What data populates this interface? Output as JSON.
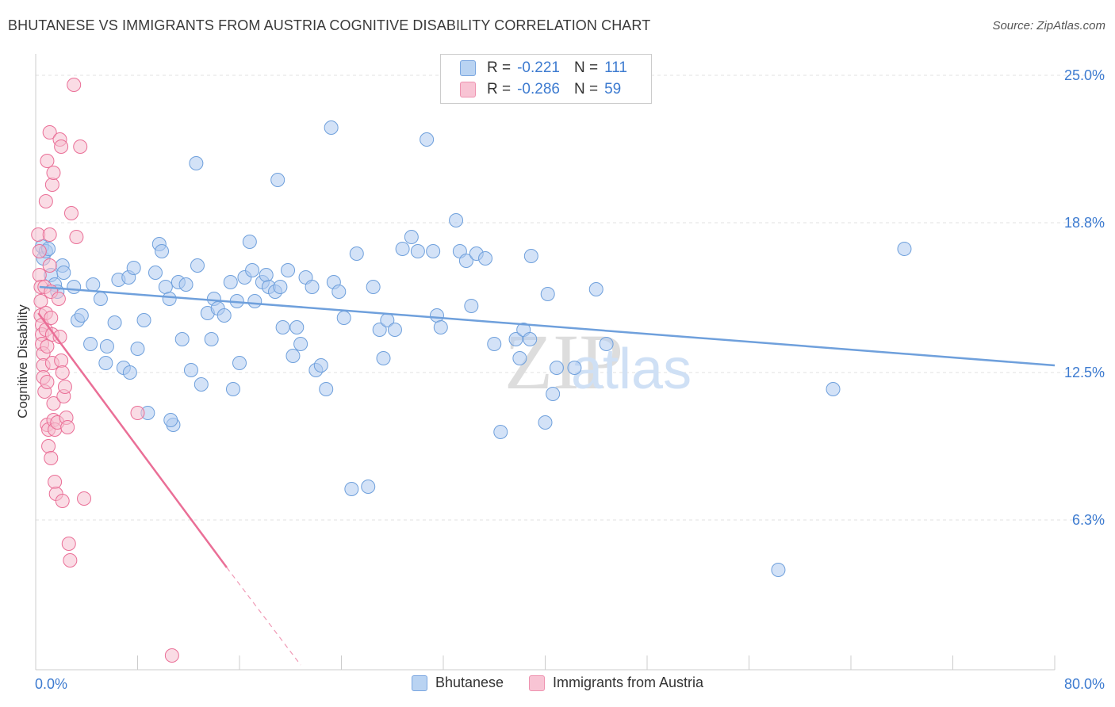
{
  "title": "BHUTANESE VS IMMIGRANTS FROM AUSTRIA COGNITIVE DISABILITY CORRELATION CHART",
  "source": "Source: ZipAtlas.com",
  "watermark": {
    "zip": "ZIP",
    "atlas": "atlas"
  },
  "legend": {
    "r_label": "R =",
    "n_label": "N =",
    "rows": [
      {
        "name": "Bhutanese",
        "r": "-0.221",
        "n": "111",
        "fill": "#b9d3f2",
        "stroke": "#7aa6e0"
      },
      {
        "name": "Immigrants from Austria",
        "r": "-0.286",
        "n": "59",
        "fill": "#f8c4d4",
        "stroke": "#ee93b0"
      }
    ]
  },
  "chart_data": {
    "type": "scatter",
    "title": "BHUTANESE VS IMMIGRANTS FROM AUSTRIA COGNITIVE DISABILITY CORRELATION CHART",
    "xlabel": "",
    "ylabel": "Cognitive Disability",
    "xlim": [
      0,
      80
    ],
    "ylim": [
      0,
      25.5
    ],
    "x_tick_labels": [
      "0.0%",
      "80.0%"
    ],
    "y_ticks": [
      6.3,
      12.5,
      18.8,
      25.0
    ],
    "y_tick_labels": [
      "6.3%",
      "12.5%",
      "18.8%",
      "25.0%"
    ],
    "grid": true,
    "series": [
      {
        "name": "Bhutanese",
        "color": "#6fa0dc",
        "fill": "#aecbf0",
        "trend": {
          "x0": 0.3,
          "y0": 16.1,
          "x1": 80,
          "y1": 12.8
        },
        "points": [
          [
            0.5,
            17.8
          ],
          [
            0.6,
            17.3
          ],
          [
            0.8,
            17.6
          ],
          [
            1.0,
            17.7
          ],
          [
            1.2,
            16.6
          ],
          [
            1.5,
            16.2
          ],
          [
            1.7,
            15.9
          ],
          [
            2.1,
            17.0
          ],
          [
            2.2,
            16.7
          ],
          [
            3.0,
            16.1
          ],
          [
            3.3,
            14.7
          ],
          [
            3.6,
            14.9
          ],
          [
            4.3,
            13.7
          ],
          [
            4.5,
            16.2
          ],
          [
            5.1,
            15.6
          ],
          [
            5.5,
            12.9
          ],
          [
            5.6,
            13.6
          ],
          [
            6.2,
            14.6
          ],
          [
            6.5,
            16.4
          ],
          [
            6.9,
            12.7
          ],
          [
            7.3,
            16.5
          ],
          [
            7.4,
            12.5
          ],
          [
            7.7,
            16.9
          ],
          [
            8.0,
            13.5
          ],
          [
            8.5,
            14.7
          ],
          [
            8.8,
            10.8
          ],
          [
            9.4,
            16.7
          ],
          [
            9.7,
            17.9
          ],
          [
            9.9,
            17.6
          ],
          [
            10.2,
            16.1
          ],
          [
            10.5,
            15.6
          ],
          [
            10.8,
            10.3
          ],
          [
            11.2,
            16.3
          ],
          [
            11.5,
            13.9
          ],
          [
            11.8,
            16.2
          ],
          [
            12.2,
            12.6
          ],
          [
            12.6,
            21.3
          ],
          [
            12.7,
            17.0
          ],
          [
            13.0,
            12.0
          ],
          [
            13.5,
            15.0
          ],
          [
            13.8,
            13.9
          ],
          [
            14.0,
            15.6
          ],
          [
            14.3,
            15.2
          ],
          [
            14.8,
            14.9
          ],
          [
            15.3,
            16.3
          ],
          [
            15.5,
            11.8
          ],
          [
            15.8,
            15.5
          ],
          [
            16.0,
            12.9
          ],
          [
            16.4,
            16.5
          ],
          [
            16.8,
            18.0
          ],
          [
            17.0,
            16.8
          ],
          [
            17.2,
            15.5
          ],
          [
            17.8,
            16.3
          ],
          [
            18.1,
            16.6
          ],
          [
            18.3,
            16.1
          ],
          [
            18.8,
            15.9
          ],
          [
            19.0,
            20.6
          ],
          [
            19.2,
            16.1
          ],
          [
            19.4,
            14.4
          ],
          [
            19.8,
            16.8
          ],
          [
            20.2,
            13.2
          ],
          [
            20.5,
            14.4
          ],
          [
            20.8,
            13.7
          ],
          [
            21.2,
            16.5
          ],
          [
            21.7,
            16.1
          ],
          [
            22.0,
            12.6
          ],
          [
            22.4,
            12.8
          ],
          [
            22.8,
            11.8
          ],
          [
            23.2,
            22.8
          ],
          [
            23.4,
            16.3
          ],
          [
            23.8,
            15.9
          ],
          [
            24.2,
            14.8
          ],
          [
            25.2,
            17.5
          ],
          [
            26.5,
            16.1
          ],
          [
            27.0,
            14.3
          ],
          [
            27.3,
            13.1
          ],
          [
            27.6,
            14.7
          ],
          [
            28.2,
            14.3
          ],
          [
            28.8,
            17.7
          ],
          [
            29.5,
            18.2
          ],
          [
            30.0,
            17.6
          ],
          [
            30.7,
            22.3
          ],
          [
            31.2,
            17.6
          ],
          [
            31.5,
            14.9
          ],
          [
            31.8,
            14.4
          ],
          [
            33.0,
            18.9
          ],
          [
            33.3,
            17.6
          ],
          [
            33.8,
            17.2
          ],
          [
            34.2,
            15.3
          ],
          [
            34.6,
            17.5
          ],
          [
            35.3,
            17.3
          ],
          [
            36.0,
            13.7
          ],
          [
            36.5,
            10.0
          ],
          [
            37.7,
            13.9
          ],
          [
            38.0,
            13.1
          ],
          [
            38.3,
            14.3
          ],
          [
            38.8,
            13.9
          ],
          [
            38.9,
            17.4
          ],
          [
            40.0,
            10.4
          ],
          [
            40.2,
            15.8
          ],
          [
            40.6,
            11.6
          ],
          [
            40.9,
            12.7
          ],
          [
            42.3,
            12.7
          ],
          [
            44.0,
            16.0
          ],
          [
            44.8,
            13.7
          ],
          [
            24.8,
            7.6
          ],
          [
            62.6,
            11.8
          ],
          [
            68.2,
            17.7
          ],
          [
            58.3,
            4.2
          ],
          [
            10.6,
            10.5
          ],
          [
            26.1,
            7.7
          ]
        ]
      },
      {
        "name": "Immigrants from Austria",
        "color": "#ea6f97",
        "fill": "#f6bfd0",
        "trend": {
          "x0": 0.2,
          "y0": 15.0,
          "x1": 15.0,
          "y1": 4.3
        },
        "trend_ext": {
          "x0": 15.0,
          "y0": 4.3,
          "x1": 20.8,
          "y1": 0.2
        },
        "points": [
          [
            0.2,
            18.3
          ],
          [
            0.3,
            17.6
          ],
          [
            0.3,
            16.6
          ],
          [
            0.4,
            16.1
          ],
          [
            0.4,
            15.5
          ],
          [
            0.4,
            14.9
          ],
          [
            0.5,
            14.5
          ],
          [
            0.5,
            14.1
          ],
          [
            0.5,
            13.7
          ],
          [
            0.6,
            13.3
          ],
          [
            0.6,
            12.8
          ],
          [
            0.6,
            12.3
          ],
          [
            0.7,
            11.7
          ],
          [
            0.7,
            16.1
          ],
          [
            0.8,
            15.0
          ],
          [
            0.8,
            14.3
          ],
          [
            0.9,
            13.6
          ],
          [
            0.9,
            12.1
          ],
          [
            0.9,
            10.3
          ],
          [
            1.0,
            10.1
          ],
          [
            1.0,
            9.4
          ],
          [
            1.1,
            18.3
          ],
          [
            1.1,
            17.0
          ],
          [
            1.2,
            15.9
          ],
          [
            1.2,
            14.8
          ],
          [
            1.3,
            14.1
          ],
          [
            1.3,
            12.9
          ],
          [
            1.4,
            11.2
          ],
          [
            1.4,
            10.5
          ],
          [
            1.5,
            10.1
          ],
          [
            1.5,
            7.9
          ],
          [
            1.6,
            7.4
          ],
          [
            1.7,
            10.4
          ],
          [
            1.8,
            15.6
          ],
          [
            1.9,
            14.0
          ],
          [
            2.0,
            13.0
          ],
          [
            2.1,
            12.5
          ],
          [
            2.2,
            11.5
          ],
          [
            2.3,
            11.9
          ],
          [
            2.4,
            10.6
          ],
          [
            2.5,
            10.2
          ],
          [
            2.6,
            5.3
          ],
          [
            2.7,
            4.6
          ],
          [
            2.8,
            19.2
          ],
          [
            3.2,
            18.2
          ],
          [
            0.8,
            19.7
          ],
          [
            0.9,
            21.4
          ],
          [
            1.1,
            22.6
          ],
          [
            1.3,
            20.4
          ],
          [
            1.4,
            20.9
          ],
          [
            1.9,
            22.3
          ],
          [
            2.0,
            22.0
          ],
          [
            3.0,
            24.6
          ],
          [
            3.5,
            22.0
          ],
          [
            3.8,
            7.2
          ],
          [
            8.0,
            10.8
          ],
          [
            1.2,
            8.9
          ],
          [
            2.1,
            7.1
          ],
          [
            10.7,
            0.6
          ]
        ]
      }
    ]
  }
}
